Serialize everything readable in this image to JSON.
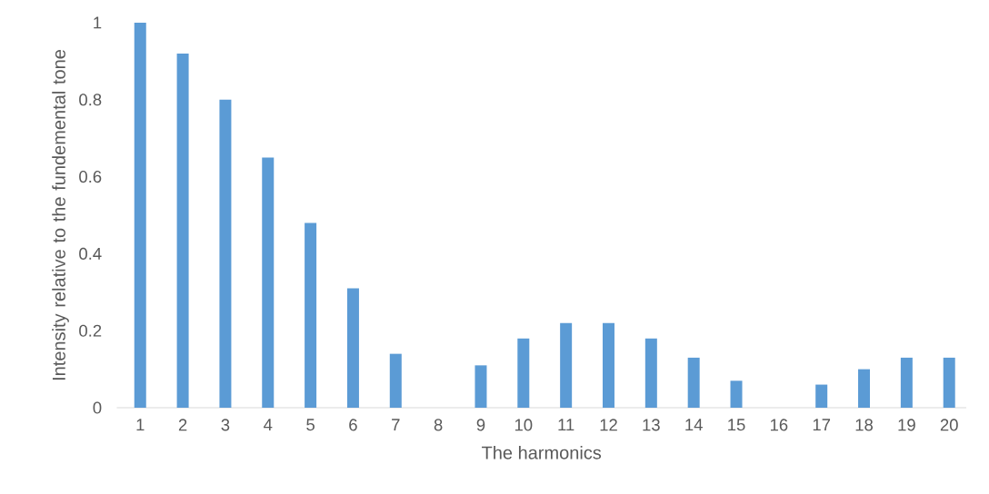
{
  "chart_data": {
    "type": "bar",
    "xlabel": "The harmonics",
    "ylabel": "Intensity relative to the fundemental tone",
    "categories": [
      "1",
      "2",
      "3",
      "4",
      "5",
      "6",
      "7",
      "8",
      "9",
      "10",
      "11",
      "12",
      "13",
      "14",
      "15",
      "16",
      "17",
      "18",
      "19",
      "20"
    ],
    "values": [
      1.0,
      0.92,
      0.8,
      0.65,
      0.48,
      0.31,
      0.14,
      0,
      0.11,
      0.18,
      0.22,
      0.22,
      0.18,
      0.13,
      0.07,
      0,
      0.06,
      0.1,
      0.13,
      0.13
    ],
    "color": "#5b9bd5",
    "ylim": [
      0,
      1
    ],
    "yticks": [
      0,
      0.2,
      0.4,
      0.6,
      0.8,
      1
    ]
  }
}
